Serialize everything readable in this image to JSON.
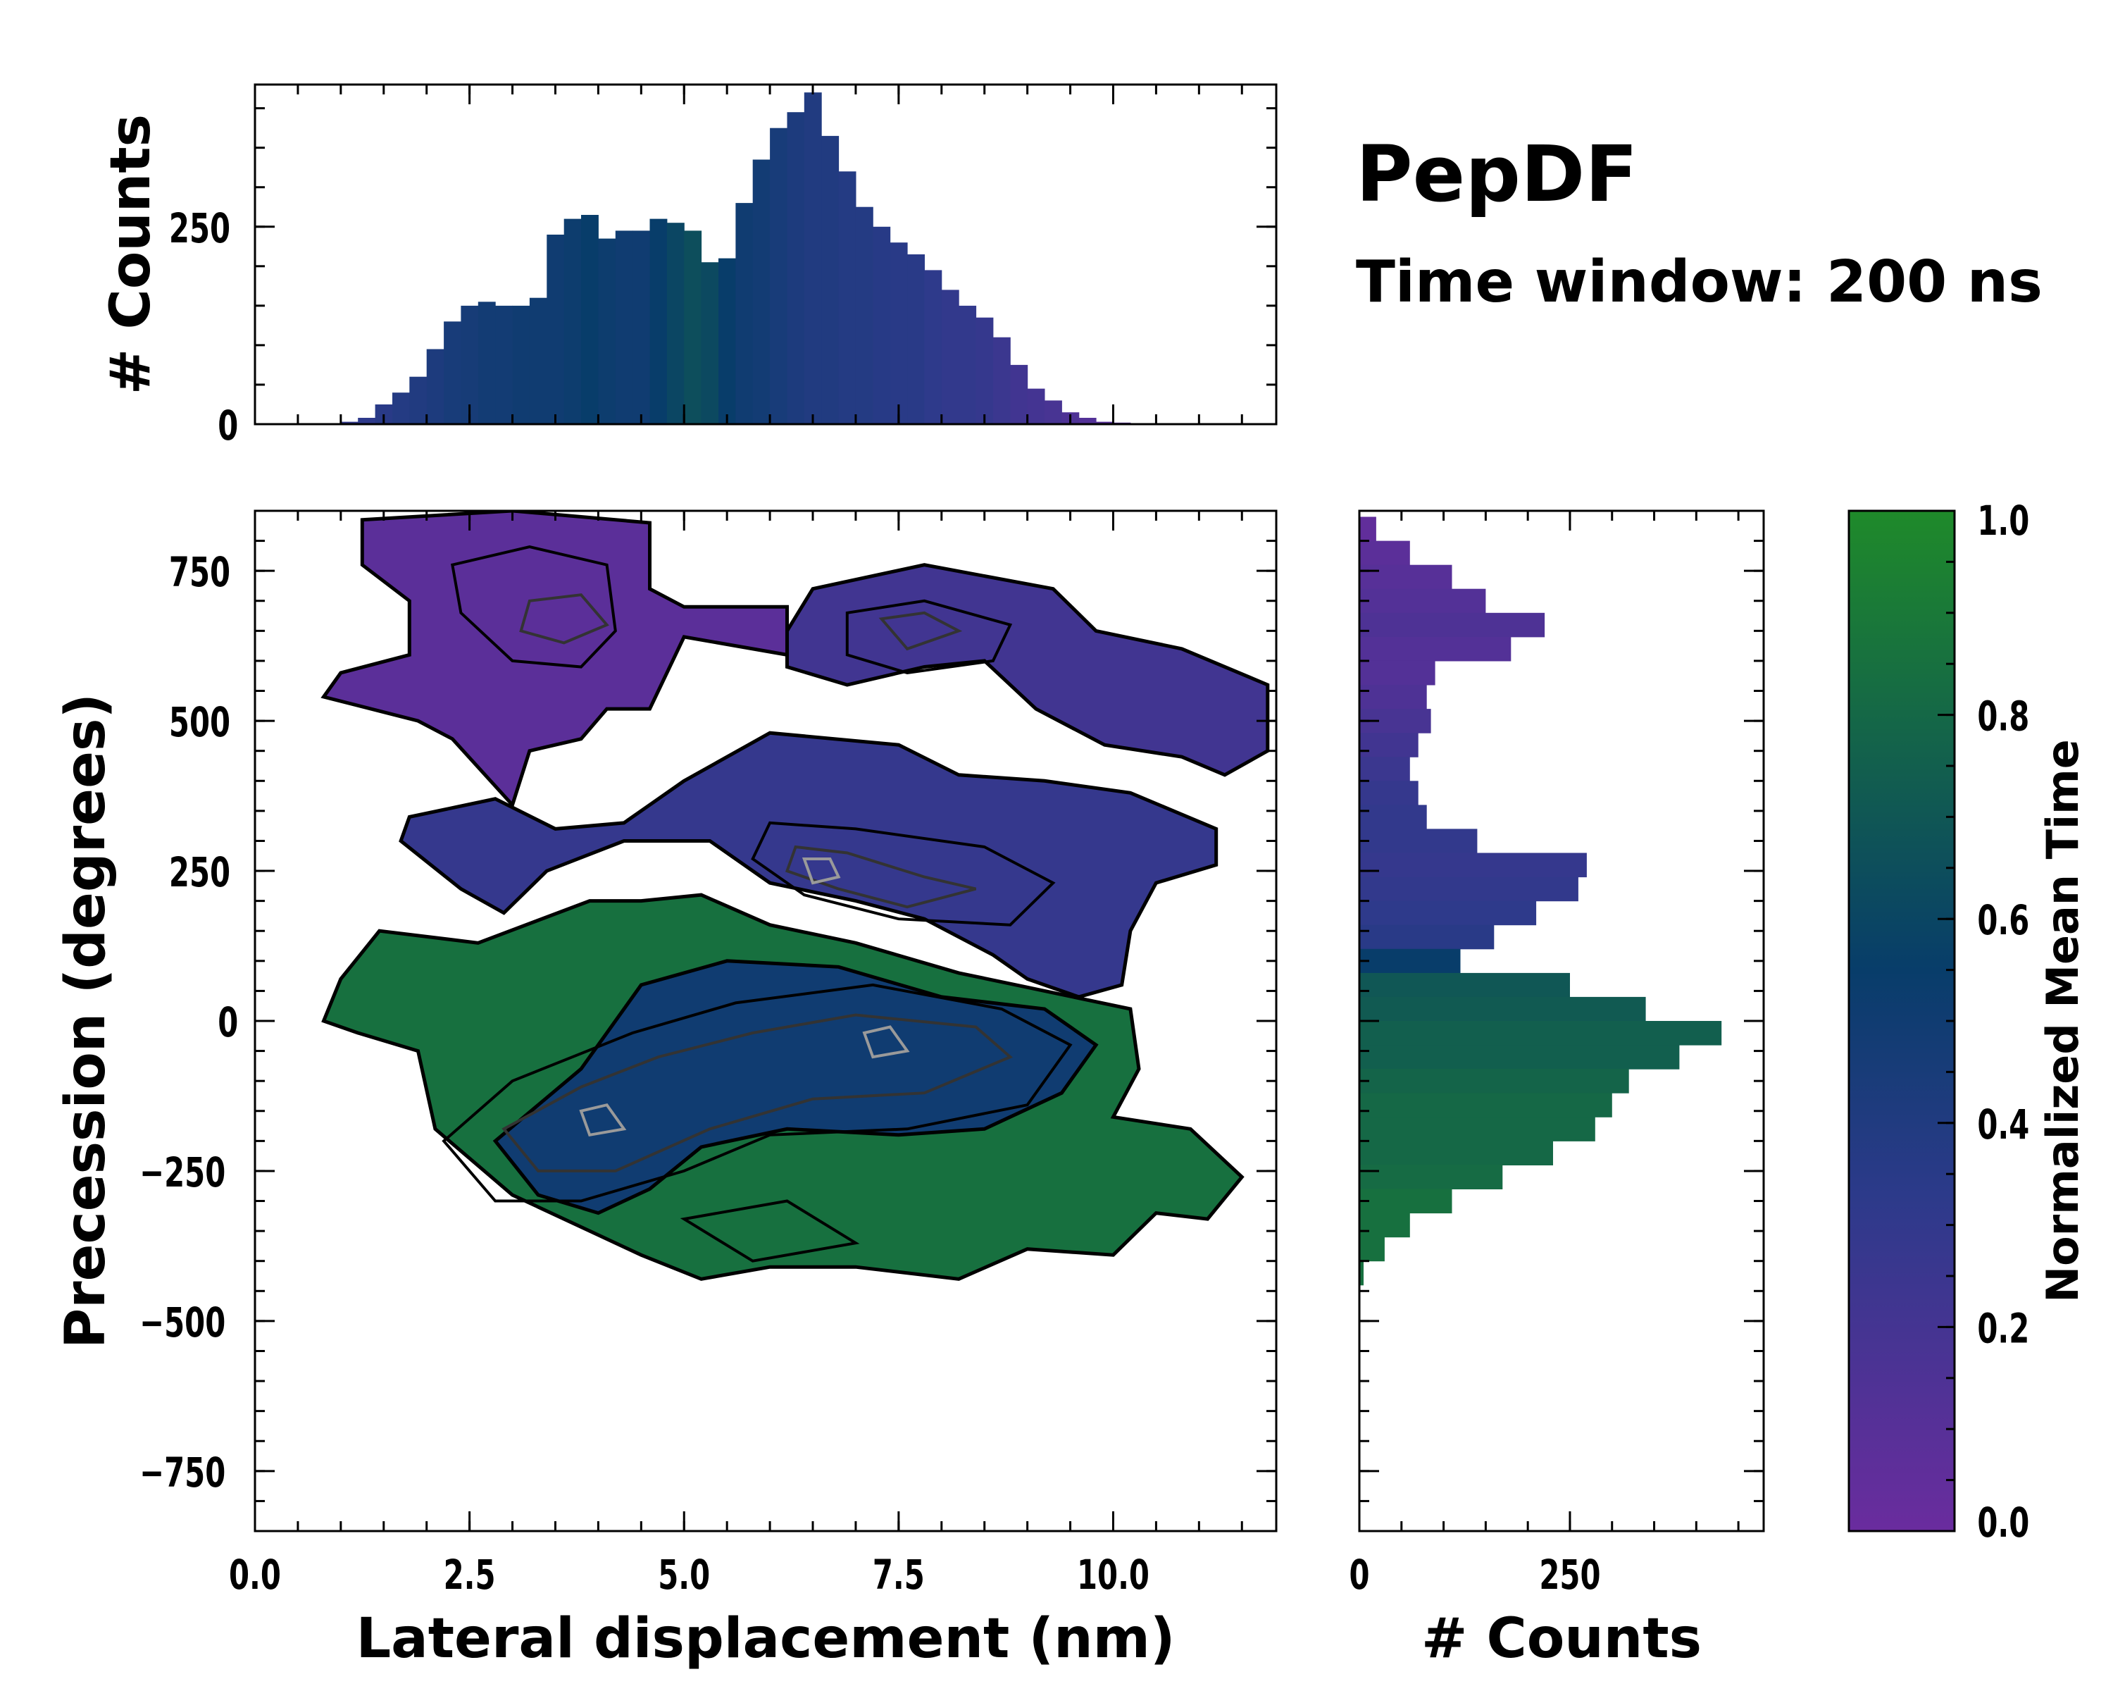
{
  "figure": {
    "title": "PepDF",
    "subtitle": "Time window: 200 ns"
  },
  "colors": {
    "cmap": [
      "#6a2c9e",
      "#2c3a8a",
      "#083d6a",
      "#1f8a2a"
    ],
    "contour_outer": "#000000",
    "contour_mid": "#333333",
    "contour_inner": "#9a9a9a"
  },
  "chart_data": [
    {
      "id": "main",
      "type": "heatmap",
      "title": "",
      "xlabel": "Lateral displacement (nm)",
      "ylabel": "Precession (degrees)",
      "xlim": [
        0.0,
        11.9
      ],
      "ylim": [
        -850,
        850
      ],
      "xticks": [
        0.0,
        2.5,
        5.0,
        7.5,
        10.0
      ],
      "xtick_labels": [
        "0.0",
        "2.5",
        "5.0",
        "7.5",
        "10.0"
      ],
      "yticks": [
        750,
        500,
        250,
        0,
        -250,
        -500,
        -750
      ],
      "ytick_labels": [
        "750",
        "500",
        "250",
        "0",
        "−250",
        "−500",
        "−750"
      ],
      "regions": [
        {
          "name": "upper-left lobe",
          "mean_time": 0.08,
          "polygon": [
            [
              1.25,
              835
            ],
            [
              3.0,
              850
            ],
            [
              4.6,
              830
            ],
            [
              4.6,
              720
            ],
            [
              5.0,
              690
            ],
            [
              6.2,
              690
            ],
            [
              6.2,
              610
            ],
            [
              5.0,
              640
            ],
            [
              4.6,
              520
            ],
            [
              4.1,
              520
            ],
            [
              3.8,
              470
            ],
            [
              3.2,
              450
            ],
            [
              3.0,
              360
            ],
            [
              2.3,
              470
            ],
            [
              1.9,
              500
            ],
            [
              0.8,
              540
            ],
            [
              1.0,
              580
            ],
            [
              1.8,
              610
            ],
            [
              1.8,
              700
            ],
            [
              1.25,
              760
            ]
          ]
        },
        {
          "name": "upper-right lobe",
          "mean_time": 0.22,
          "polygon": [
            [
              6.5,
              720
            ],
            [
              7.8,
              760
            ],
            [
              9.3,
              720
            ],
            [
              9.8,
              650
            ],
            [
              10.8,
              620
            ],
            [
              11.8,
              560
            ],
            [
              11.8,
              450
            ],
            [
              11.3,
              410
            ],
            [
              10.8,
              440
            ],
            [
              9.9,
              460
            ],
            [
              9.1,
              520
            ],
            [
              8.5,
              600
            ],
            [
              7.8,
              590
            ],
            [
              6.9,
              560
            ],
            [
              6.2,
              590
            ],
            [
              6.2,
              650
            ]
          ]
        },
        {
          "name": "middle band",
          "mean_time": 0.28,
          "polygon": [
            [
              5.0,
              400
            ],
            [
              6.0,
              480
            ],
            [
              7.5,
              460
            ],
            [
              8.2,
              410
            ],
            [
              9.2,
              400
            ],
            [
              10.2,
              380
            ],
            [
              11.2,
              320
            ],
            [
              11.2,
              260
            ],
            [
              10.5,
              230
            ],
            [
              10.2,
              150
            ],
            [
              10.1,
              60
            ],
            [
              9.6,
              40
            ],
            [
              9.0,
              70
            ],
            [
              8.6,
              110
            ],
            [
              7.8,
              170
            ],
            [
              7.0,
              200
            ],
            [
              6.0,
              230
            ],
            [
              5.3,
              300
            ],
            [
              4.3,
              300
            ],
            [
              3.4,
              250
            ],
            [
              2.9,
              180
            ],
            [
              2.4,
              220
            ],
            [
              1.7,
              300
            ],
            [
              1.8,
              340
            ],
            [
              2.8,
              370
            ],
            [
              3.5,
              320
            ],
            [
              4.3,
              330
            ]
          ]
        },
        {
          "name": "lower lobe",
          "mean_time": 0.85,
          "polygon": [
            [
              1.45,
              150
            ],
            [
              2.6,
              130
            ],
            [
              3.9,
              200
            ],
            [
              4.5,
              200
            ],
            [
              5.2,
              210
            ],
            [
              6.0,
              160
            ],
            [
              7.0,
              130
            ],
            [
              8.2,
              80
            ],
            [
              9.2,
              50
            ],
            [
              10.2,
              20
            ],
            [
              10.3,
              -80
            ],
            [
              10.0,
              -160
            ],
            [
              10.9,
              -180
            ],
            [
              11.5,
              -260
            ],
            [
              11.1,
              -330
            ],
            [
              10.5,
              -320
            ],
            [
              10.0,
              -390
            ],
            [
              9.0,
              -380
            ],
            [
              8.2,
              -430
            ],
            [
              7.0,
              -410
            ],
            [
              6.0,
              -410
            ],
            [
              5.2,
              -430
            ],
            [
              4.5,
              -390
            ],
            [
              3.9,
              -350
            ],
            [
              3.0,
              -290
            ],
            [
              2.1,
              -180
            ],
            [
              1.9,
              -50
            ],
            [
              1.2,
              -20
            ],
            [
              0.8,
              0
            ],
            [
              1.0,
              70
            ]
          ]
        },
        {
          "name": "lower core",
          "mean_time": 0.5,
          "polygon": [
            [
              2.8,
              -200
            ],
            [
              3.8,
              -80
            ],
            [
              4.5,
              60
            ],
            [
              5.5,
              100
            ],
            [
              6.8,
              90
            ],
            [
              8.0,
              40
            ],
            [
              9.2,
              20
            ],
            [
              9.8,
              -40
            ],
            [
              9.4,
              -120
            ],
            [
              8.5,
              -180
            ],
            [
              7.5,
              -190
            ],
            [
              6.2,
              -180
            ],
            [
              5.2,
              -210
            ],
            [
              4.6,
              -280
            ],
            [
              4.0,
              -320
            ],
            [
              3.3,
              -290
            ]
          ]
        }
      ],
      "contours": [
        {
          "level": "low",
          "paths": [
            [
              [
                2.3,
                760
              ],
              [
                3.2,
                790
              ],
              [
                4.1,
                760
              ],
              [
                4.2,
                650
              ],
              [
                3.8,
                590
              ],
              [
                3.0,
                600
              ],
              [
                2.4,
                680
              ]
            ],
            [
              [
                6.9,
                680
              ],
              [
                7.8,
                700
              ],
              [
                8.8,
                660
              ],
              [
                8.6,
                600
              ],
              [
                7.6,
                580
              ],
              [
                6.9,
                610
              ]
            ],
            [
              [
                6.0,
                330
              ],
              [
                7.0,
                320
              ],
              [
                8.5,
                290
              ],
              [
                9.3,
                230
              ],
              [
                8.8,
                160
              ],
              [
                7.5,
                170
              ],
              [
                6.4,
                210
              ],
              [
                5.8,
                270
              ]
            ],
            [
              [
                2.2,
                -200
              ],
              [
                3.0,
                -100
              ],
              [
                4.4,
                -20
              ],
              [
                5.6,
                30
              ],
              [
                7.2,
                60
              ],
              [
                8.7,
                20
              ],
              [
                9.5,
                -40
              ],
              [
                9.0,
                -140
              ],
              [
                7.6,
                -180
              ],
              [
                6.0,
                -190
              ],
              [
                5.0,
                -250
              ],
              [
                3.8,
                -300
              ],
              [
                2.8,
                -300
              ]
            ],
            [
              [
                5.0,
                -330
              ],
              [
                6.2,
                -300
              ],
              [
                7.0,
                -370
              ],
              [
                5.8,
                -400
              ]
            ]
          ]
        },
        {
          "level": "mid",
          "paths": [
            [
              [
                3.2,
                700
              ],
              [
                3.8,
                710
              ],
              [
                4.1,
                660
              ],
              [
                3.6,
                630
              ],
              [
                3.1,
                650
              ]
            ],
            [
              [
                7.3,
                670
              ],
              [
                7.8,
                680
              ],
              [
                8.2,
                650
              ],
              [
                7.6,
                620
              ]
            ],
            [
              [
                6.3,
                290
              ],
              [
                6.9,
                280
              ],
              [
                7.8,
                240
              ],
              [
                8.4,
                220
              ],
              [
                7.6,
                190
              ],
              [
                6.8,
                220
              ],
              [
                6.2,
                250
              ]
            ],
            [
              [
                2.9,
                -180
              ],
              [
                3.8,
                -110
              ],
              [
                4.7,
                -60
              ],
              [
                5.8,
                -20
              ],
              [
                7.0,
                10
              ],
              [
                8.4,
                -10
              ],
              [
                8.8,
                -60
              ],
              [
                7.8,
                -120
              ],
              [
                6.5,
                -130
              ],
              [
                5.3,
                -180
              ],
              [
                4.2,
                -250
              ],
              [
                3.3,
                -250
              ]
            ]
          ]
        },
        {
          "level": "high",
          "paths": [
            [
              [
                6.4,
                270
              ],
              [
                6.7,
                270
              ],
              [
                6.8,
                240
              ],
              [
                6.5,
                230
              ]
            ],
            [
              [
                3.8,
                -150
              ],
              [
                4.1,
                -140
              ],
              [
                4.3,
                -180
              ],
              [
                3.9,
                -190
              ]
            ],
            [
              [
                7.1,
                -20
              ],
              [
                7.4,
                -10
              ],
              [
                7.6,
                -50
              ],
              [
                7.2,
                -60
              ]
            ]
          ]
        }
      ]
    },
    {
      "id": "top-marginal",
      "type": "bar",
      "title": "",
      "xlabel": "",
      "ylabel": "# Counts",
      "ylim": [
        0,
        430
      ],
      "yticks": [
        0,
        250
      ],
      "ytick_labels": [
        "0",
        "250"
      ],
      "x": [
        0.9,
        1.1,
        1.3,
        1.5,
        1.7,
        1.9,
        2.1,
        2.3,
        2.5,
        2.7,
        2.9,
        3.1,
        3.3,
        3.5,
        3.7,
        3.9,
        4.1,
        4.3,
        4.5,
        4.7,
        4.9,
        5.1,
        5.3,
        5.5,
        5.7,
        5.9,
        6.1,
        6.3,
        6.5,
        6.7,
        6.9,
        7.1,
        7.3,
        7.5,
        7.7,
        7.9,
        8.1,
        8.3,
        8.5,
        8.7,
        8.9,
        9.1,
        9.3,
        9.5,
        9.7,
        9.9,
        10.1,
        10.3,
        10.5,
        10.7,
        10.9,
        11.1,
        11.3,
        11.5,
        11.7
      ],
      "values": [
        1,
        3,
        8,
        25,
        40,
        60,
        95,
        130,
        150,
        155,
        150,
        150,
        160,
        240,
        260,
        265,
        235,
        245,
        245,
        260,
        255,
        245,
        205,
        210,
        280,
        335,
        375,
        395,
        420,
        365,
        320,
        275,
        250,
        230,
        215,
        195,
        170,
        150,
        135,
        110,
        75,
        45,
        30,
        15,
        8,
        3,
        2,
        1,
        0,
        0,
        0,
        0,
        0,
        0,
        0
      ],
      "mean_time": [
        0.3,
        0.3,
        0.32,
        0.35,
        0.38,
        0.4,
        0.42,
        0.45,
        0.46,
        0.48,
        0.48,
        0.5,
        0.5,
        0.5,
        0.52,
        0.55,
        0.52,
        0.5,
        0.5,
        0.55,
        0.6,
        0.65,
        0.62,
        0.55,
        0.5,
        0.48,
        0.45,
        0.42,
        0.4,
        0.4,
        0.38,
        0.38,
        0.36,
        0.35,
        0.35,
        0.32,
        0.3,
        0.3,
        0.28,
        0.25,
        0.22,
        0.2,
        0.18,
        0.15,
        0.12,
        0.1,
        0.1,
        0.1,
        0.1,
        0.1,
        0.1,
        0.1,
        0.1,
        0.1,
        0.1
      ]
    },
    {
      "id": "right-marginal",
      "type": "bar",
      "title": "",
      "xlabel": "# Counts",
      "ylabel": "",
      "xlim": [
        0,
        480
      ],
      "xticks": [
        0,
        250
      ],
      "xtick_labels": [
        "0",
        "250"
      ],
      "y": [
        820,
        780,
        740,
        700,
        660,
        620,
        580,
        540,
        500,
        460,
        420,
        380,
        340,
        300,
        260,
        220,
        180,
        140,
        100,
        60,
        20,
        -20,
        -60,
        -100,
        -140,
        -180,
        -220,
        -260,
        -300,
        -340,
        -380,
        -420
      ],
      "values": [
        20,
        60,
        110,
        150,
        220,
        180,
        90,
        80,
        85,
        70,
        60,
        70,
        80,
        140,
        270,
        260,
        210,
        160,
        120,
        250,
        340,
        430,
        380,
        320,
        300,
        280,
        230,
        170,
        110,
        60,
        30,
        5
      ],
      "mean_time": [
        0.05,
        0.08,
        0.1,
        0.12,
        0.15,
        0.12,
        0.12,
        0.15,
        0.18,
        0.22,
        0.25,
        0.28,
        0.3,
        0.3,
        0.28,
        0.3,
        0.32,
        0.35,
        0.55,
        0.7,
        0.72,
        0.75,
        0.75,
        0.78,
        0.8,
        0.8,
        0.8,
        0.82,
        0.85,
        0.85,
        0.85,
        0.85
      ]
    },
    {
      "id": "colorbar",
      "type": "heatmap",
      "title": "",
      "ylabel": "Normalized Mean Time",
      "ylim": [
        0.0,
        1.0
      ],
      "yticks": [
        0.0,
        0.2,
        0.4,
        0.6,
        0.8,
        1.0
      ],
      "ytick_labels": [
        "0.0",
        "0.2",
        "0.4",
        "0.6",
        "0.8",
        "1.0"
      ]
    }
  ]
}
